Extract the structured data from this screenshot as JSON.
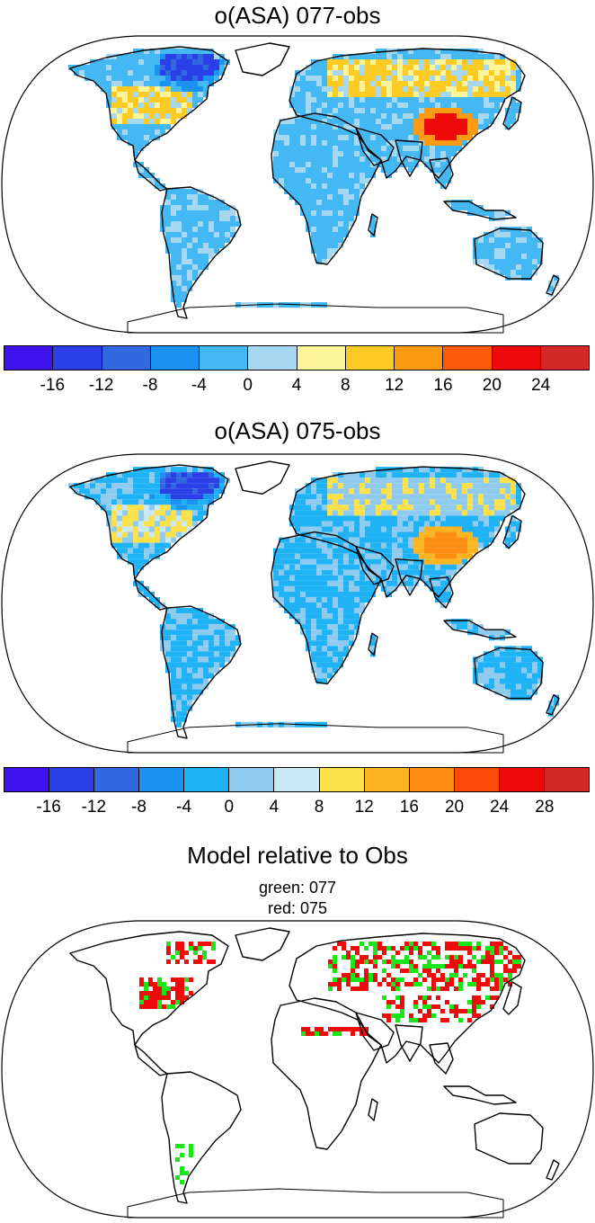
{
  "panel1": {
    "title": "o(ASA) 077-obs",
    "colors": [
      "#3f12f0",
      "#2a3fe6",
      "#2f68e0",
      "#1a93f3",
      "#44b8f2",
      "#a6d9f1",
      "#fdf59a",
      "#fdcb24",
      "#fd9b12",
      "#fd5b0a",
      "#ef0a0a",
      "#d42727"
    ],
    "ticks": [
      "-16",
      "-12",
      "-8",
      "-4",
      "0",
      "4",
      "8",
      "12",
      "16",
      "20",
      "24"
    ]
  },
  "panel2": {
    "title": "o(ASA) 075-obs",
    "colors": [
      "#3f12f0",
      "#2a3fe6",
      "#2f68e0",
      "#1a93f3",
      "#1fb3f5",
      "#8ecbef",
      "#c9e9f7",
      "#fde14a",
      "#fdb422",
      "#fd8e12",
      "#fd4a08",
      "#ef0a0a",
      "#d42727"
    ],
    "ticks": [
      "-16",
      "-12",
      "-8",
      "-4",
      "0",
      "4",
      "8",
      "12",
      "16",
      "20",
      "24",
      "28"
    ]
  },
  "panel3": {
    "title": "Model relative to Obs",
    "line1": "green: 077",
    "line2": "red: 075",
    "green_color": "#19e619",
    "red_color": "#f00a0a"
  }
}
